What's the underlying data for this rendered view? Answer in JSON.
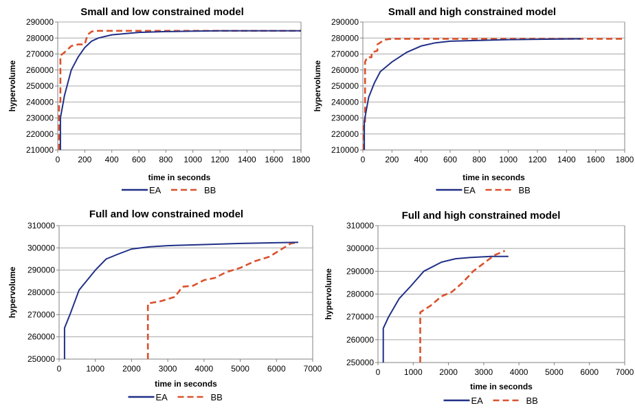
{
  "colors": {
    "ea": "#1f2f86",
    "bb": "#d9512c",
    "grid": "#a8a8a8",
    "axis": "#808080"
  },
  "chart_data": [
    {
      "type": "line",
      "title": "Small and low constrained model",
      "xlabel": "time in seconds",
      "ylabel": "hypervolume",
      "xlim": [
        0,
        1800
      ],
      "ylim": [
        210000,
        290000
      ],
      "xticks": [
        "0",
        "200",
        "400",
        "600",
        "800",
        "1000",
        "1200",
        "1400",
        "1600",
        "1800"
      ],
      "yticks": [
        "210000",
        "220000",
        "230000",
        "240000",
        "250000",
        "260000",
        "270000",
        "280000",
        "290000"
      ],
      "grid": true,
      "legend": "bottom",
      "series": [
        {
          "name": "EA",
          "points": [
            [
              20,
              210000
            ],
            [
              20,
              230000
            ],
            [
              50,
              244000
            ],
            [
              100,
              260000
            ],
            [
              150,
              268000
            ],
            [
              200,
              274000
            ],
            [
              250,
              278000
            ],
            [
              300,
              280000
            ],
            [
              400,
              282000
            ],
            [
              600,
              283500
            ],
            [
              800,
              284000
            ],
            [
              1000,
              284300
            ],
            [
              1200,
              284500
            ],
            [
              1800,
              284500
            ]
          ]
        },
        {
          "name": "BB",
          "points": [
            [
              10,
              210000
            ],
            [
              10,
              240000
            ],
            [
              20,
              240000
            ],
            [
              20,
              269000
            ],
            [
              50,
              271000
            ],
            [
              100,
              275000
            ],
            [
              150,
              276000
            ],
            [
              200,
              276000
            ],
            [
              220,
              282000
            ],
            [
              250,
              284000
            ],
            [
              300,
              284500
            ],
            [
              1800,
              284500
            ]
          ]
        }
      ]
    },
    {
      "type": "line",
      "title": "Small and high constrained model",
      "xlabel": "time in seconds",
      "ylabel": "hypervolume",
      "xlim": [
        0,
        1800
      ],
      "ylim": [
        210000,
        290000
      ],
      "xticks": [
        "0",
        "200",
        "400",
        "600",
        "800",
        "1000",
        "1200",
        "1400",
        "1600",
        "1800"
      ],
      "yticks": [
        "210000",
        "220000",
        "230000",
        "240000",
        "250000",
        "260000",
        "270000",
        "280000",
        "290000"
      ],
      "grid": true,
      "legend": "bottom",
      "series": [
        {
          "name": "EA",
          "points": [
            [
              10,
              210000
            ],
            [
              10,
              228000
            ],
            [
              40,
              243000
            ],
            [
              80,
              252000
            ],
            [
              120,
              259000
            ],
            [
              200,
              265000
            ],
            [
              300,
              271000
            ],
            [
              400,
              275000
            ],
            [
              500,
              277000
            ],
            [
              600,
              278000
            ],
            [
              800,
              278500
            ],
            [
              1000,
              279000
            ],
            [
              1500,
              279500
            ]
          ]
        },
        {
          "name": "BB",
          "points": [
            [
              5,
              210000
            ],
            [
              5,
              225000
            ],
            [
              15,
              225000
            ],
            [
              15,
              265000
            ],
            [
              30,
              268000
            ],
            [
              60,
              268000
            ],
            [
              60,
              271000
            ],
            [
              100,
              272000
            ],
            [
              100,
              276000
            ],
            [
              150,
              279000
            ],
            [
              200,
              279500
            ],
            [
              1800,
              279500
            ]
          ]
        }
      ]
    },
    {
      "type": "line",
      "title": "Full and low constrained model",
      "xlabel": "time in seconds",
      "ylabel": "hypervolume",
      "xlim": [
        0,
        7000
      ],
      "ylim": [
        250000,
        310000
      ],
      "xticks": [
        "0",
        "1000",
        "2000",
        "3000",
        "4000",
        "5000",
        "6000",
        "7000"
      ],
      "yticks": [
        "250000",
        "260000",
        "270000",
        "280000",
        "290000",
        "300000",
        "310000"
      ],
      "grid": true,
      "legend": "bottom",
      "series": [
        {
          "name": "EA",
          "points": [
            [
              150,
              250000
            ],
            [
              150,
              264000
            ],
            [
              300,
              270000
            ],
            [
              550,
              281000
            ],
            [
              800,
              286000
            ],
            [
              1000,
              290000
            ],
            [
              1300,
              295000
            ],
            [
              1600,
              297000
            ],
            [
              2000,
              299500
            ],
            [
              2500,
              300500
            ],
            [
              3000,
              301000
            ],
            [
              4000,
              301500
            ],
            [
              5000,
              302000
            ],
            [
              6600,
              302500
            ]
          ]
        },
        {
          "name": "BB",
          "points": [
            [
              2450,
              250000
            ],
            [
              2450,
              275000
            ],
            [
              2800,
              276000
            ],
            [
              3200,
              278000
            ],
            [
              3400,
              282500
            ],
            [
              3700,
              283000
            ],
            [
              4000,
              285500
            ],
            [
              4300,
              286500
            ],
            [
              4600,
              289000
            ],
            [
              5000,
              291000
            ],
            [
              5400,
              294000
            ],
            [
              5800,
              296000
            ],
            [
              6200,
              300000
            ],
            [
              6400,
              302000
            ],
            [
              6600,
              302500
            ]
          ]
        }
      ]
    },
    {
      "type": "line",
      "title": "Full and high constrained model",
      "xlabel": "time in seconds",
      "ylabel": "hypervolume",
      "xlim": [
        0,
        7000
      ],
      "ylim": [
        250000,
        310000
      ],
      "xticks": [
        "0",
        "1000",
        "2000",
        "3000",
        "4000",
        "5000",
        "6000",
        "7000"
      ],
      "yticks": [
        "250000",
        "260000",
        "270000",
        "280000",
        "290000",
        "300000",
        "310000"
      ],
      "grid": true,
      "legend": "bottom",
      "series": [
        {
          "name": "EA",
          "points": [
            [
              150,
              250000
            ],
            [
              150,
              265000
            ],
            [
              300,
              270000
            ],
            [
              600,
              278000
            ],
            [
              900,
              283000
            ],
            [
              1300,
              290000
            ],
            [
              1800,
              294000
            ],
            [
              2200,
              295500
            ],
            [
              2600,
              296000
            ],
            [
              3200,
              296500
            ],
            [
              3700,
              296500
            ]
          ]
        },
        {
          "name": "BB",
          "points": [
            [
              1200,
              250000
            ],
            [
              1200,
              272000
            ],
            [
              1500,
              275000
            ],
            [
              1800,
              279000
            ],
            [
              2100,
              281000
            ],
            [
              2400,
              285000
            ],
            [
              2700,
              290000
            ],
            [
              3000,
              293500
            ],
            [
              3300,
              297000
            ],
            [
              3600,
              299000
            ]
          ]
        }
      ]
    }
  ]
}
